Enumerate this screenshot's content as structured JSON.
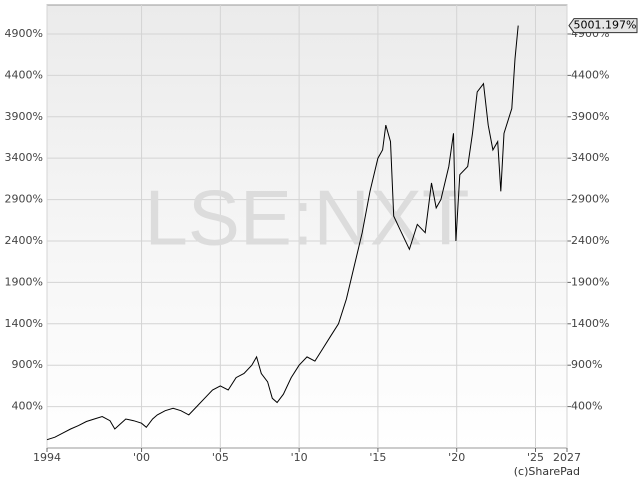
{
  "chart_data": {
    "type": "line",
    "watermark": "LSE:NXT",
    "credit": "(c)SharePad",
    "x": [
      1994,
      1994.5,
      1995,
      1995.5,
      1996,
      1996.5,
      1997,
      1997.5,
      1998,
      1998.3,
      1998.7,
      1999,
      1999.5,
      2000,
      2000.3,
      2000.7,
      2001,
      2001.5,
      2002,
      2002.5,
      2003,
      2003.5,
      2004,
      2004.5,
      2005,
      2005.5,
      2006,
      2006.5,
      2007,
      2007.3,
      2007.6,
      2008,
      2008.3,
      2008.6,
      2009,
      2009.5,
      2010,
      2010.5,
      2011,
      2011.5,
      2012,
      2012.5,
      2013,
      2013.5,
      2014,
      2014.5,
      2015,
      2015.3,
      2015.5,
      2015.8,
      2016,
      2016.5,
      2017,
      2017.5,
      2018,
      2018.4,
      2018.7,
      2019,
      2019.5,
      2019.8,
      2019.95,
      2020.2,
      2020.7,
      2021,
      2021.3,
      2021.7,
      2022,
      2022.3,
      2022.6,
      2022.8,
      2023,
      2023.5,
      2023.7,
      2023.9
    ],
    "series": [
      {
        "color": "#000000",
        "values": [
          0,
          30,
          80,
          130,
          170,
          220,
          250,
          280,
          230,
          130,
          200,
          250,
          230,
          200,
          150,
          250,
          300,
          350,
          380,
          350,
          300,
          400,
          500,
          600,
          650,
          600,
          750,
          800,
          900,
          1000,
          800,
          700,
          500,
          450,
          550,
          750,
          900,
          1000,
          950,
          1100,
          1250,
          1400,
          1700,
          2100,
          2500,
          3000,
          3400,
          3500,
          3800,
          3600,
          2700,
          2500,
          2300,
          2600,
          2500,
          3100,
          2800,
          2900,
          3300,
          3700,
          2400,
          3200,
          3300,
          3700,
          4200,
          4300,
          3800,
          3500,
          3600,
          3000,
          3700,
          4000,
          4600,
          5001.197
        ]
      }
    ],
    "last_value": {
      "value": 5001.197,
      "label": "5001.197%"
    },
    "xlim": [
      1994,
      2027
    ],
    "xticks": [
      {
        "value": 1994,
        "label": "1994"
      },
      {
        "value": 2000,
        "label": "'00"
      },
      {
        "value": 2005,
        "label": "'05"
      },
      {
        "value": 2010,
        "label": "'10"
      },
      {
        "value": 2015,
        "label": "'15"
      },
      {
        "value": 2020,
        "label": "'20"
      },
      {
        "value": 2025,
        "label": "'25"
      },
      {
        "value": 2027,
        "label": "2027"
      }
    ],
    "ylim": [
      -100,
      5250
    ],
    "yticks": [
      {
        "value": 400,
        "label": "400%"
      },
      {
        "value": 900,
        "label": "900%"
      },
      {
        "value": 1400,
        "label": "1400%"
      },
      {
        "value": 1900,
        "label": "1900%"
      },
      {
        "value": 2400,
        "label": "2400%"
      },
      {
        "value": 2900,
        "label": "2900%"
      },
      {
        "value": 3400,
        "label": "3400%"
      },
      {
        "value": 3900,
        "label": "3900%"
      },
      {
        "value": 4400,
        "label": "4400%"
      },
      {
        "value": 4900,
        "label": "4900%"
      }
    ],
    "grid": true
  }
}
